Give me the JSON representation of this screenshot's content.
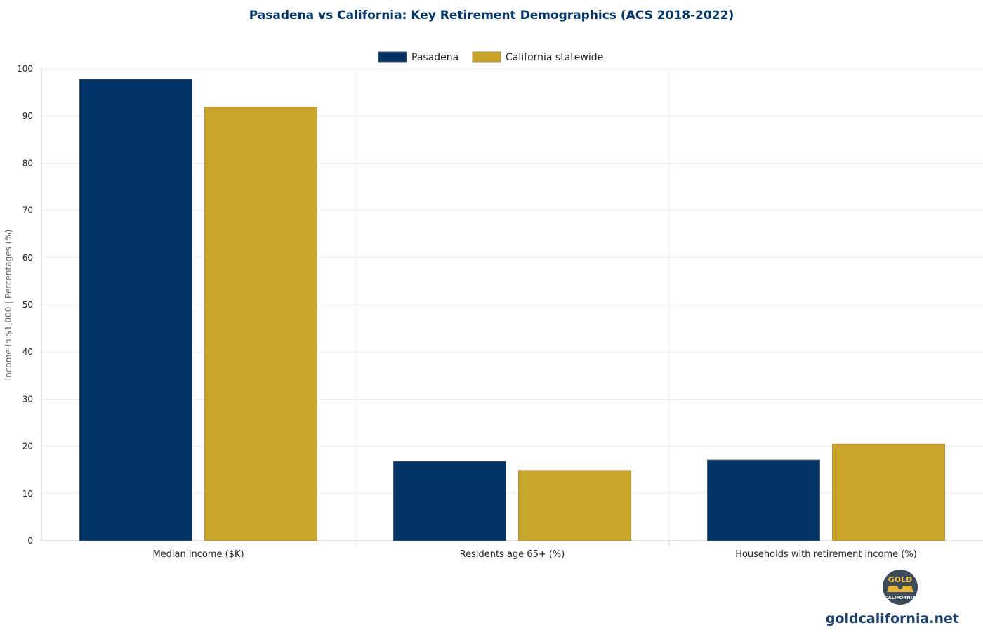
{
  "chart_data": {
    "type": "bar",
    "title": "Pasadena vs California: Key Retirement Demographics (ACS 2018-2022)",
    "xlabel": "",
    "ylabel": "Income in $1,000 | Percentages (%)",
    "categories": [
      "Median income ($K)",
      "Residents age 65+ (%)",
      "Households with retirement income (%)"
    ],
    "series": [
      {
        "name": "Pasadena",
        "values": [
          97.8,
          16.8,
          17.1
        ],
        "color": "#003366",
        "edge": "#4a5a6e"
      },
      {
        "name": "California statewide",
        "values": [
          91.9,
          14.9,
          20.5
        ],
        "color": "#c9a42b",
        "edge": "#a88f52"
      }
    ],
    "ylim": [
      0,
      100
    ],
    "yticks": [
      0,
      10,
      20,
      30,
      40,
      50,
      60,
      70,
      80,
      90,
      100
    ],
    "grid": true,
    "legend_position": "top-center"
  },
  "branding": {
    "logo_top": "GOLD",
    "logo_bottom": "CALIFORNIA",
    "logo_icon": "gold-bars-icon",
    "site": "goldcalifornia.net"
  }
}
